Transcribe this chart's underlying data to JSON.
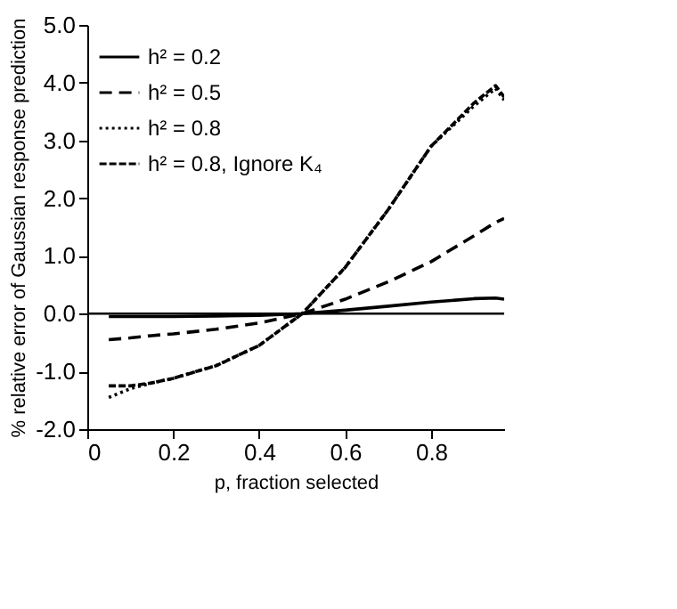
{
  "chart_data": {
    "type": "line",
    "xlabel": "p, fraction selected",
    "ylabel": "% relative error of Gaussian response prediction",
    "xlim": [
      0,
      0.97
    ],
    "ylim": [
      -2.0,
      5.0
    ],
    "xticks": [
      0,
      0.2,
      0.4,
      0.6,
      0.8
    ],
    "yticks": [
      {
        "value": -2,
        "label": "-2.0"
      },
      {
        "value": -1,
        "label": "-1.0"
      },
      {
        "value": 0,
        "label": "0.0"
      },
      {
        "value": 1,
        "label": "1.0"
      },
      {
        "value": 2,
        "label": "2.0"
      },
      {
        "value": 3,
        "label": "3.0"
      },
      {
        "value": 4,
        "label": "4.0"
      },
      {
        "value": 5,
        "label": "5.0"
      }
    ],
    "x": [
      0.05,
      0.1,
      0.15,
      0.2,
      0.3,
      0.4,
      0.5,
      0.6,
      0.7,
      0.8,
      0.9,
      0.95,
      0.97
    ],
    "series": [
      {
        "name": "h² = 0.2",
        "color": "#000000",
        "line_style": "solid",
        "values": [
          -0.05,
          -0.05,
          -0.05,
          -0.05,
          -0.04,
          -0.03,
          0.0,
          0.06,
          0.13,
          0.2,
          0.26,
          0.27,
          0.25
        ]
      },
      {
        "name": "h² = 0.5",
        "color": "#000000",
        "line_style": "dashed",
        "values": [
          -0.45,
          -0.42,
          -0.38,
          -0.35,
          -0.27,
          -0.16,
          0.0,
          0.25,
          0.55,
          0.9,
          1.35,
          1.58,
          1.65
        ]
      },
      {
        "name": "h² = 0.8",
        "color": "#000000",
        "line_style": "dotted",
        "values": [
          -1.45,
          -1.3,
          -1.2,
          -1.12,
          -0.9,
          -0.55,
          0.0,
          0.8,
          1.8,
          2.9,
          3.6,
          3.9,
          3.7
        ]
      },
      {
        "name": "h² = 0.8, Ignore K₄",
        "color": "#000000",
        "line_style": "dotted",
        "values": [
          -1.25,
          -1.25,
          -1.2,
          -1.12,
          -0.9,
          -0.55,
          0.0,
          0.8,
          1.8,
          2.9,
          3.65,
          3.95,
          3.75
        ]
      }
    ],
    "ref_lines": [
      {
        "axis": "y",
        "value": 0,
        "color": "#000000"
      }
    ],
    "legend": "top left",
    "grid": false
  }
}
